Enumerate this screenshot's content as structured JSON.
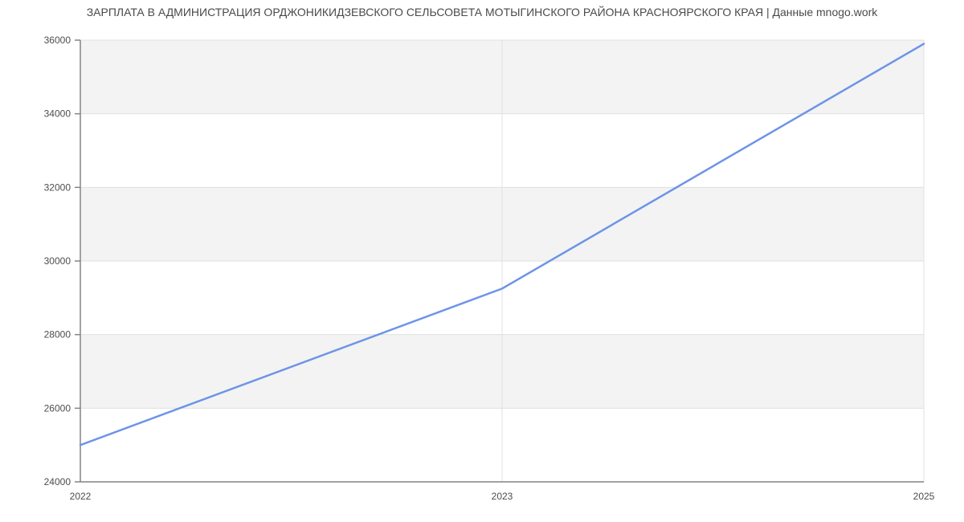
{
  "chart_data": {
    "type": "line",
    "title": "ЗАРПЛАТА В АДМИНИСТРАЦИЯ ОРДЖОНИКИДЗЕВСКОГО СЕЛЬСОВЕТА МОТЫГИНСКОГО РАЙОНА КРАСНОЯРСКОГО КРАЯ | Данные mnogo.work",
    "categories": [
      "2022",
      "2023",
      "2025"
    ],
    "series": [
      {
        "name": "Зарплата",
        "values": [
          25000,
          29250,
          35900
        ]
      }
    ],
    "xlabel": "",
    "ylabel": "",
    "ylim": [
      24000,
      36000
    ],
    "ytick_step": 2000,
    "ytick_labels": [
      "24000",
      "26000",
      "28000",
      "30000",
      "32000",
      "34000",
      "36000"
    ],
    "grid": "horizontal gridlines with alternating shaded bands, vertical gridlines at category positions",
    "legend_position": "none",
    "colors": {
      "line": "#6d94e7",
      "band": "#f3f3f3",
      "gridline": "#e0e0e0",
      "axis": "#848484",
      "tick_text": "#4d4d4d",
      "title_text": "#4a4a4a",
      "background": "#ffffff"
    }
  }
}
